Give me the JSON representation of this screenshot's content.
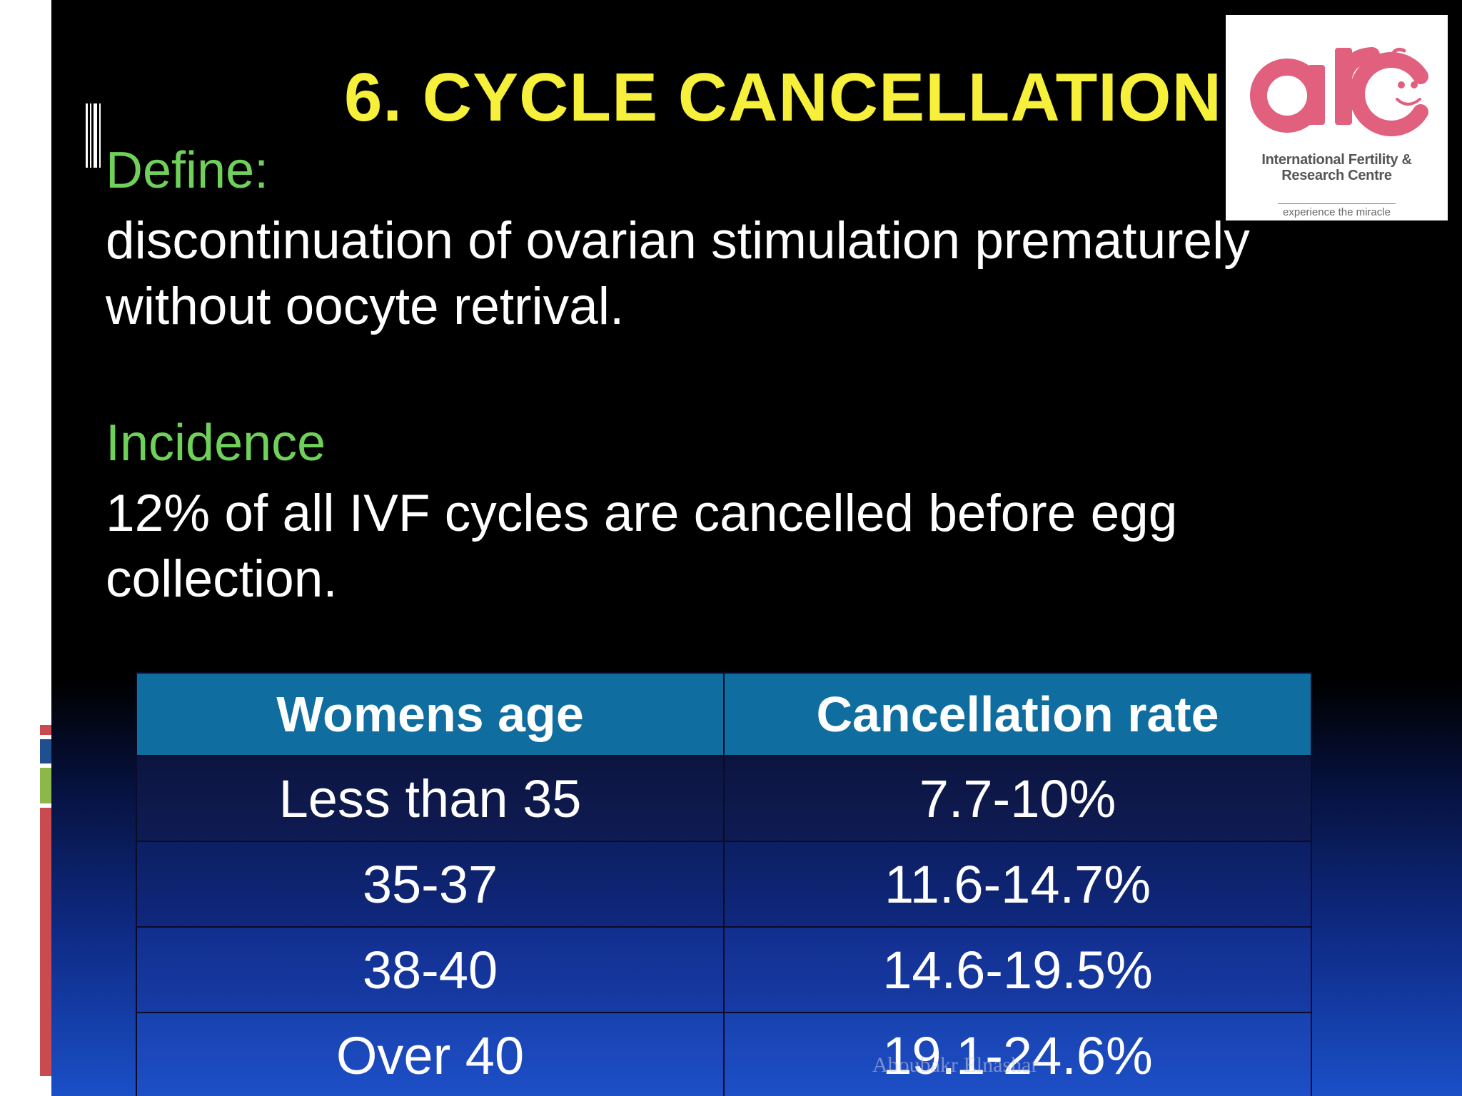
{
  "title": "6. CYCLE CANCELLATION",
  "define": {
    "heading": "Define:",
    "text": "discontinuation of ovarian stimulation prematurely without oocyte retrival."
  },
  "incidence": {
    "heading": "Incidence",
    "text": "12% of all IVF cycles are cancelled before egg collection."
  },
  "logo": {
    "brand": "arc",
    "line1": "International Fertility &",
    "line2": "Research Centre",
    "tagline": "experience the miracle",
    "color": "#e0607e"
  },
  "table": {
    "headers": [
      "Womens age",
      "Cancellation rate"
    ],
    "rows": [
      [
        "Less than 35",
        "7.7-10%"
      ],
      [
        "35-37",
        "11.6-14.7%"
      ],
      [
        "38-40",
        "14.6-19.5%"
      ],
      [
        "Over 40",
        "19.1-24.6%"
      ]
    ]
  },
  "watermark": "Aboubakr Elnashar",
  "colors": {
    "title": "#f6f03a",
    "heading": "#6fd15a",
    "table_header": "#0f6e9f",
    "deco_red": "#c94a4f",
    "deco_blue": "#1f4f8f",
    "deco_green": "#8cb84a"
  }
}
